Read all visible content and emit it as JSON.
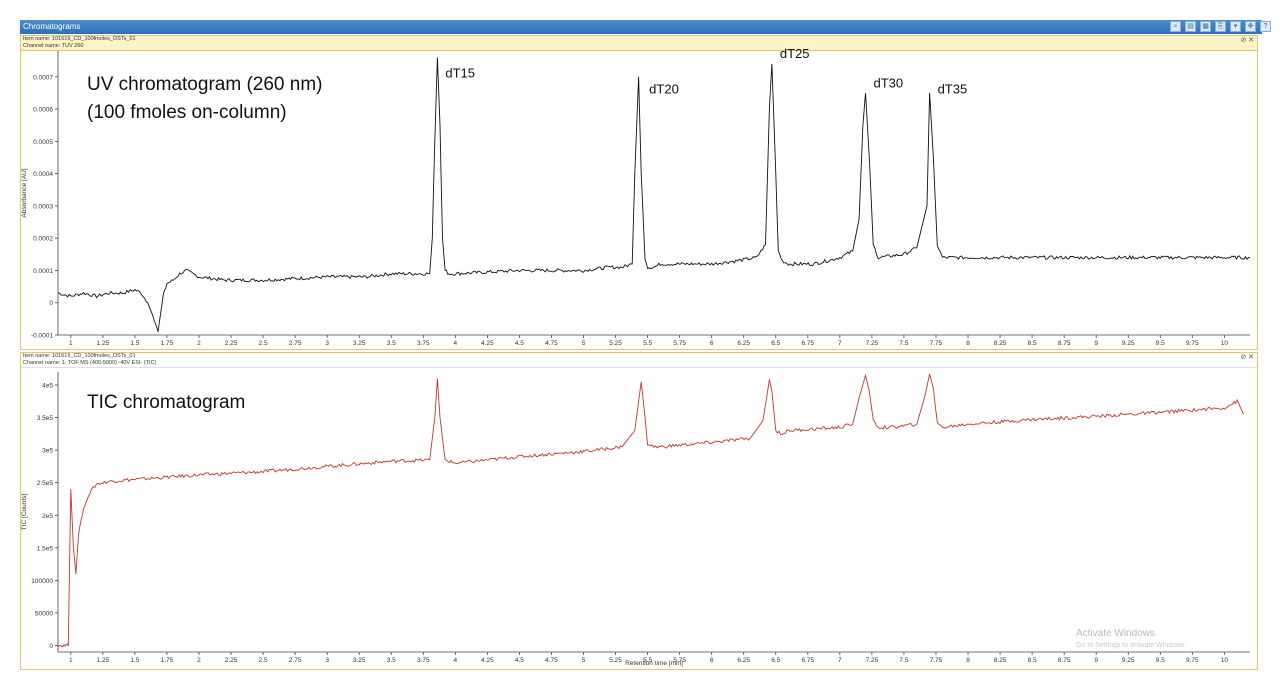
{
  "window": {
    "title": "Chromatograms"
  },
  "toolbar": {
    "icons": [
      "zoom-icon",
      "layout-icon",
      "grid-icon",
      "copy-icon",
      "dropdown-icon",
      "pan-icon"
    ]
  },
  "pane1": {
    "item_name": "Item name: 101619_CD_100fmoles_OSTs_01",
    "channel_name": "Channel name: TUV 260",
    "ctl": "⊘ ✕"
  },
  "pane2": {
    "item_name": "Item name: 101619_CD_100fmoles_OSTs_01",
    "channel_name": "Channel name: 1: TOF MS (400-5000) -40V ESI- (TIC)",
    "ctl": "⊘ ✕"
  },
  "watermark": {
    "line1": "Activate Windows",
    "line2": "Go to Settings to activate Windows."
  },
  "chart_data": [
    {
      "type": "line",
      "title": "UV chromatogram (260 nm)",
      "subtitle": "(100 fmoles on-column)",
      "xlabel": "",
      "ylabel": "Absorbance [AU]",
      "xlim": [
        0.9,
        10.2
      ],
      "ylim": [
        -0.0001,
        0.00078
      ],
      "xticks": [
        "1",
        "1.25",
        "1.5",
        "1.75",
        "2",
        "2.25",
        "2.5",
        "2.75",
        "3",
        "3.25",
        "3.5",
        "3.75",
        "4",
        "4.25",
        "4.5",
        "4.75",
        "5",
        "5.25",
        "5.5",
        "5.75",
        "6",
        "6.25",
        "6.5",
        "6.75",
        "7",
        "7.25",
        "7.5",
        "7.75",
        "8",
        "8.25",
        "8.5",
        "8.75",
        "9",
        "9.25",
        "9.5",
        "9.75",
        "10"
      ],
      "yticks": [
        {
          "v": -0.0001,
          "label": "-0.0001"
        },
        {
          "v": 0,
          "label": "0"
        },
        {
          "v": 0.0001,
          "label": "0.0001"
        },
        {
          "v": 0.0002,
          "label": "0.0002"
        },
        {
          "v": 0.0003,
          "label": "0.0003"
        },
        {
          "v": 0.0004,
          "label": "0.0004"
        },
        {
          "v": 0.0005,
          "label": "0.0005"
        },
        {
          "v": 0.0006,
          "label": "0.0006"
        },
        {
          "v": 0.0007,
          "label": "0.0007"
        }
      ],
      "color": "#111111",
      "series": [
        {
          "x": [
            0.9,
            1.0,
            1.1,
            1.2,
            1.3,
            1.4,
            1.5,
            1.55,
            1.6,
            1.65,
            1.68,
            1.72,
            1.75,
            1.8,
            1.85,
            1.9,
            2.0,
            2.2,
            2.5,
            3.0,
            3.3,
            3.5,
            3.7,
            3.8,
            3.82,
            3.84,
            3.86,
            3.88,
            3.9,
            3.92,
            3.95,
            4.0,
            4.5,
            5.0,
            5.2,
            5.3,
            5.38,
            5.4,
            5.43,
            5.45,
            5.48,
            5.5,
            5.55,
            5.6,
            6.0,
            6.2,
            6.35,
            6.42,
            6.45,
            6.47,
            6.5,
            6.52,
            6.55,
            6.6,
            6.8,
            7.0,
            7.1,
            7.15,
            7.18,
            7.2,
            7.23,
            7.26,
            7.3,
            7.5,
            7.6,
            7.68,
            7.7,
            7.73,
            7.76,
            7.8,
            7.9,
            8.0,
            8.5,
            9.0,
            9.5,
            10.0,
            10.2
          ],
          "y": [
            3e-05,
            2e-05,
            3e-05,
            2e-05,
            3e-05,
            3e-05,
            4e-05,
            3e-05,
            0.0,
            -5e-05,
            -9e-05,
            2e-05,
            6e-05,
            7e-05,
            9e-05,
            0.0001,
            8e-05,
            7e-05,
            7e-05,
            8e-05,
            8e-05,
            9e-05,
            9e-05,
            9e-05,
            0.0002,
            0.0005,
            0.00076,
            0.00055,
            0.0002,
            0.0001,
            9e-05,
            9e-05,
            0.0001,
            0.0001,
            0.00011,
            0.00011,
            0.00012,
            0.0004,
            0.0007,
            0.0004,
            0.00014,
            0.00011,
            0.00011,
            0.00012,
            0.00012,
            0.00013,
            0.00014,
            0.00018,
            0.0006,
            0.00074,
            0.0004,
            0.00016,
            0.00013,
            0.00012,
            0.00012,
            0.00014,
            0.00016,
            0.00026,
            0.00055,
            0.00065,
            0.00045,
            0.00018,
            0.00014,
            0.00015,
            0.00017,
            0.0003,
            0.00065,
            0.00045,
            0.00018,
            0.00014,
            0.00014,
            0.00014,
            0.00014,
            0.00014,
            0.00014,
            0.00014,
            0.00014
          ]
        }
      ],
      "annotations": [
        {
          "label": "dT15",
          "x": 3.86,
          "y": 0.00071
        },
        {
          "label": "dT20",
          "x": 5.45,
          "y": 0.00066
        },
        {
          "label": "dT25",
          "x": 6.47,
          "y": 0.00077
        },
        {
          "label": "dT30",
          "x": 7.2,
          "y": 0.00068
        },
        {
          "label": "dT35",
          "x": 7.7,
          "y": 0.00066
        }
      ]
    },
    {
      "type": "line",
      "title": "TIC chromatogram",
      "xlabel": "Retention time [min]",
      "ylabel": "TIC [Counts]",
      "xlim": [
        0.9,
        10.2
      ],
      "ylim": [
        -10000,
        420000
      ],
      "xticks": [
        "1",
        "1.25",
        "1.5",
        "1.75",
        "2",
        "2.25",
        "2.5",
        "2.75",
        "3",
        "3.25",
        "3.5",
        "3.75",
        "4",
        "4.25",
        "4.5",
        "4.75",
        "5",
        "5.25",
        "5.5",
        "5.75",
        "6",
        "6.25",
        "6.5",
        "6.75",
        "7",
        "7.25",
        "7.5",
        "7.75",
        "8",
        "8.25",
        "8.5",
        "8.75",
        "9",
        "9.25",
        "9.5",
        "9.75",
        "10"
      ],
      "yticks": [
        {
          "v": 0,
          "label": "0"
        },
        {
          "v": 50000,
          "label": "50000"
        },
        {
          "v": 100000,
          "label": "100000"
        },
        {
          "v": 150000,
          "label": "1.5e5"
        },
        {
          "v": 200000,
          "label": "2e5"
        },
        {
          "v": 250000,
          "label": "2.5e5"
        },
        {
          "v": 300000,
          "label": "3e5"
        },
        {
          "v": 350000,
          "label": "3.5e5"
        },
        {
          "v": 400000,
          "label": "4e5"
        }
      ],
      "color": "#c0392b",
      "series": [
        {
          "x": [
            0.9,
            0.98,
            1.0,
            1.02,
            1.04,
            1.06,
            1.08,
            1.1,
            1.15,
            1.2,
            1.3,
            1.5,
            2.0,
            2.5,
            3.0,
            3.5,
            3.8,
            3.84,
            3.86,
            3.88,
            3.92,
            4.0,
            4.5,
            5.0,
            5.3,
            5.4,
            5.45,
            5.47,
            5.5,
            5.55,
            5.6,
            6.0,
            6.3,
            6.4,
            6.45,
            6.47,
            6.5,
            6.55,
            6.6,
            7.0,
            7.1,
            7.15,
            7.2,
            7.23,
            7.26,
            7.3,
            7.4,
            7.6,
            7.66,
            7.7,
            7.73,
            7.76,
            7.8,
            8.0,
            8.5,
            9.0,
            9.5,
            10.0,
            10.1,
            10.15
          ],
          "y": [
            0,
            0,
            240000,
            150000,
            110000,
            170000,
            195000,
            210000,
            235000,
            248000,
            252000,
            255000,
            262000,
            267000,
            275000,
            283000,
            285000,
            350000,
            410000,
            350000,
            285000,
            280000,
            290000,
            298000,
            305000,
            330000,
            405000,
            370000,
            310000,
            305000,
            305000,
            312000,
            318000,
            345000,
            408000,
            390000,
            330000,
            325000,
            330000,
            335000,
            340000,
            380000,
            415000,
            390000,
            345000,
            335000,
            335000,
            340000,
            380000,
            417000,
            395000,
            340000,
            335000,
            340000,
            347000,
            352000,
            358000,
            365000,
            375000,
            355000
          ]
        }
      ]
    }
  ]
}
